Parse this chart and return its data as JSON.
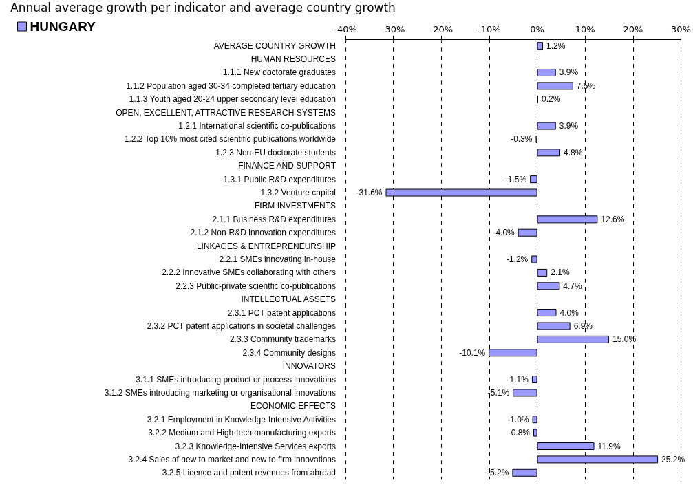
{
  "chart_data": {
    "type": "bar",
    "orientation": "horizontal",
    "title": "Annual average growth per indicator and average country growth",
    "categories": [
      "AVERAGE COUNTRY GROWTH",
      "HUMAN RESOURCES",
      "1.1.1 New doctorate graduates",
      "1.1.2 Population aged 30-34 completed tertiary education",
      "1.1.3 Youth aged 20-24 upper secondary level education",
      "OPEN, EXCELLENT, ATTRACTIVE RESEARCH SYSTEMS",
      "1.2.1 International scientific co-publications",
      "1.2.2 Top 10% most cited scientific publications worldwide",
      "1.2.3 Non-EU doctorate students",
      "FINANCE AND SUPPORT",
      "1.3.1 Public R&D expenditures",
      "1.3.2 Venture capital",
      "FIRM INVESTMENTS",
      "2.1.1 Business R&D expenditures",
      "2.1.2 Non-R&D innovation expenditures",
      "LINKAGES & ENTREPRENEURSHIP",
      "2.2.1 SMEs innovating in-house",
      "2.2.2 Innovative SMEs collaborating with others",
      "2.2.3 Public-private scientfic co-publications",
      "INTELLECTUAL ASSETS",
      "2.3.1 PCT patent applications",
      "2.3.2 PCT patent applications in societal challenges",
      "2.3.3 Community trademarks",
      "2.3.4 Community designs",
      "INNOVATORS",
      "3.1.1 SMEs introducing product or process innovations",
      "3.1.2 SMEs introducing marketing or organisational innovations",
      "ECONOMIC EFFECTS",
      "3.2.1 Employment in Knowledge-Intensive Activities",
      "3.2.2 Medium and High-tech manufacturing exports",
      "3.2.3 Knowledge-Intensive Services exports",
      "3.2.4 Sales of new to market and new to firm innovations",
      "3.2.5 Licence and patent revenues from abroad"
    ],
    "series": [
      {
        "name": "HUNGARY",
        "color": "#9999ff",
        "values": [
          1.2,
          null,
          3.9,
          7.5,
          0.2,
          null,
          3.9,
          -0.3,
          4.8,
          null,
          -1.5,
          -31.6,
          null,
          12.6,
          -4.0,
          null,
          -1.2,
          2.1,
          4.7,
          null,
          4.0,
          6.9,
          15.0,
          -10.1,
          null,
          -1.1,
          -5.1,
          null,
          -1.0,
          -0.8,
          11.9,
          25.2,
          -5.2
        ],
        "value_labels": [
          "1.2%",
          null,
          "3.9%",
          "7.5%",
          "0.2%",
          null,
          "3.9%",
          "-0.3%",
          "4.8%",
          null,
          "-1.5%",
          "-31.6%",
          null,
          "12.6%",
          "-4.0%",
          null,
          "-1.2%",
          "2.1%",
          "4.7%",
          null,
          "4.0%",
          "6.9%",
          "15.0%",
          "-10.1%",
          null,
          "-1.1%",
          "-5.1%",
          null,
          "-1.0%",
          "-0.8%",
          "11.9%",
          "25.2%",
          "-5.2%"
        ]
      }
    ],
    "xlim": [
      -40,
      30
    ],
    "xticks": [
      {
        "value": -40,
        "label": "-40%"
      },
      {
        "value": -30,
        "label": "-30%"
      },
      {
        "value": -20,
        "label": "-20%"
      },
      {
        "value": -10,
        "label": "-10%"
      },
      {
        "value": 0,
        "label": "0%"
      },
      {
        "value": 10,
        "label": "10%"
      },
      {
        "value": 20,
        "label": "20%"
      },
      {
        "value": 30,
        "label": "30%"
      }
    ],
    "grid": "x",
    "legend": "top left"
  }
}
